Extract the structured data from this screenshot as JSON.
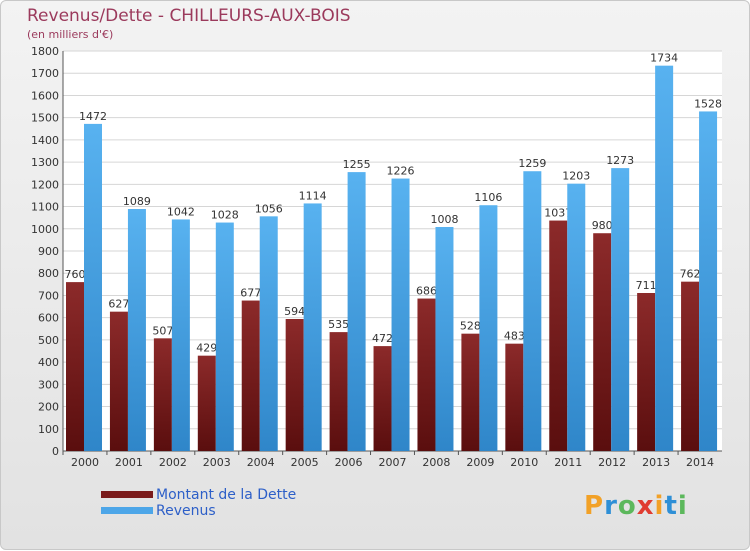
{
  "header": {
    "title": "Revenus/Dette - CHILLEURS-AUX-BOIS",
    "subtitle": "(en milliers d'€)"
  },
  "chart_data": {
    "type": "bar",
    "categories": [
      "2000",
      "2001",
      "2002",
      "2003",
      "2004",
      "2005",
      "2006",
      "2007",
      "2008",
      "2009",
      "2010",
      "2011",
      "2012",
      "2013",
      "2014"
    ],
    "series": [
      {
        "name": "Montant de la Dette",
        "color": "#7a1a1a",
        "values": [
          760,
          627,
          507,
          429,
          677,
          594,
          535,
          472,
          686,
          528,
          483,
          1037,
          980,
          711,
          762
        ],
        "labels": [
          "760",
          "627",
          "507",
          "429",
          "677",
          "594",
          "535",
          "472",
          "686",
          "528",
          "483",
          "1037",
          "980",
          "711",
          "762"
        ]
      },
      {
        "name": "Revenus",
        "color": "#4da6e8",
        "values": [
          1472,
          1089,
          1042,
          1028,
          1056,
          1114,
          1255,
          1226,
          1008,
          1106,
          1259,
          1203,
          1273,
          1734,
          1528
        ],
        "labels": [
          "1472",
          "1089",
          "1042",
          "1028",
          "1056",
          "1114",
          "1255",
          "1226",
          "1008",
          "1106",
          "1259",
          "1203",
          "1273",
          "1734",
          "1528"
        ]
      }
    ],
    "ylim": [
      0,
      1800
    ],
    "yticks": [
      "0",
      "100",
      "200",
      "300",
      "400",
      "500",
      "600",
      "700",
      "800",
      "900",
      "1000",
      "1100",
      "1200",
      "1300",
      "1400",
      "1500",
      "1600",
      "1700",
      "1800"
    ],
    "grid": true,
    "legend": "bottom-left"
  },
  "legend": {
    "items": [
      {
        "label": "Montant de la Dette",
        "color": "#7a1a1a"
      },
      {
        "label": "Revenus",
        "color": "#4da6e8"
      }
    ]
  },
  "logo": {
    "letters": [
      "P",
      "r",
      "o",
      "x",
      "i",
      "t",
      "i"
    ],
    "colors": [
      "#f2a127",
      "#2e8fd6",
      "#5cb85c",
      "#e03c31",
      "#f2a127",
      "#2e8fd6",
      "#5cb85c"
    ]
  }
}
